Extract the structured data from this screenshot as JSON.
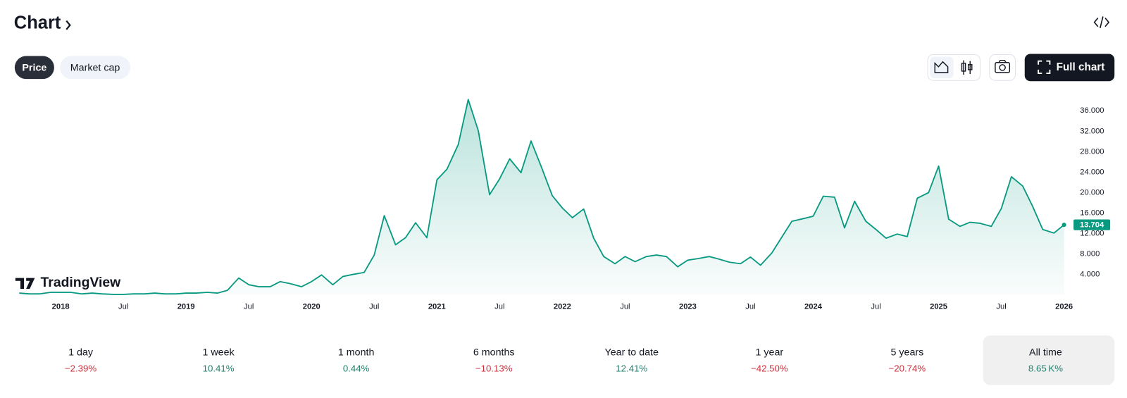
{
  "header": {
    "title": "Chart",
    "tabs": [
      "Price",
      "Market cap"
    ],
    "active_tab": 0,
    "full_chart": "Full chart"
  },
  "chart_data": {
    "type": "line",
    "watermark": "TradingView",
    "x": [
      2017.67,
      2017.75,
      2017.83,
      2017.92,
      2018.0,
      2018.08,
      2018.17,
      2018.25,
      2018.33,
      2018.42,
      2018.5,
      2018.58,
      2018.67,
      2018.75,
      2018.83,
      2018.92,
      2019.0,
      2019.08,
      2019.17,
      2019.25,
      2019.33,
      2019.42,
      2019.5,
      2019.58,
      2019.67,
      2019.75,
      2019.83,
      2019.92,
      2020.0,
      2020.08,
      2020.17,
      2020.25,
      2020.33,
      2020.42,
      2020.5,
      2020.58,
      2020.67,
      2020.75,
      2020.83,
      2020.92,
      2021.0,
      2021.08,
      2021.17,
      2021.25,
      2021.33,
      2021.42,
      2021.5,
      2021.58,
      2021.67,
      2021.75,
      2021.83,
      2021.92,
      2022.0,
      2022.08,
      2022.17,
      2022.25,
      2022.33,
      2022.42,
      2022.5,
      2022.58,
      2022.67,
      2022.75,
      2022.83,
      2022.92,
      2023.0,
      2023.08,
      2023.17,
      2023.25,
      2023.33,
      2023.42,
      2023.5,
      2023.58,
      2023.67,
      2023.75,
      2023.83,
      2023.92,
      2024.0,
      2024.08,
      2024.17,
      2024.25,
      2024.33,
      2024.42,
      2024.5,
      2024.58,
      2024.67,
      2024.75,
      2024.83,
      2024.92,
      2025.0,
      2025.08,
      2025.17,
      2025.25,
      2025.33,
      2025.42,
      2025.5,
      2025.58,
      2025.67,
      2025.75,
      2025.83,
      2025.92,
      2026.0
    ],
    "series": [
      {
        "color": "#089981",
        "values": [
          0.35,
          0.2,
          0.2,
          0.5,
          0.5,
          0.5,
          0.2,
          0.35,
          0.2,
          0.1,
          0.1,
          0.2,
          0.2,
          0.35,
          0.2,
          0.2,
          0.35,
          0.35,
          0.5,
          0.35,
          0.9,
          3.3,
          2.0,
          1.6,
          1.6,
          2.6,
          2.2,
          1.6,
          2.6,
          3.9,
          2.0,
          3.6,
          4.0,
          4.4,
          7.8,
          15.5,
          9.8,
          11.2,
          14.1,
          11.2,
          22.5,
          24.6,
          29.4,
          38.2,
          32.1,
          19.6,
          22.7,
          26.6,
          23.9,
          30.1,
          25.2,
          19.4,
          17.0,
          15.1,
          16.8,
          11.1,
          7.5,
          6.1,
          7.5,
          6.5,
          7.5,
          7.8,
          7.5,
          5.5,
          6.8,
          7.1,
          7.5,
          7.0,
          6.4,
          6.1,
          7.4,
          5.8,
          8.2,
          11.3,
          14.4,
          14.9,
          15.4,
          19.3,
          19.1,
          13.1,
          18.3,
          14.4,
          12.8,
          11.1,
          11.9,
          11.4,
          18.9,
          20.0,
          25.2,
          14.8,
          13.4,
          14.2,
          14.0,
          13.4,
          16.9,
          23.1,
          21.3,
          17.3,
          12.8,
          12.1,
          13.704
        ]
      }
    ],
    "xlim": [
      2017.65,
      2026.08
    ],
    "xticks": [
      2018,
      {
        "value": 2018.5,
        "label": "Jul"
      },
      2019,
      {
        "value": 2019.5,
        "label": "Jul"
      },
      2020,
      {
        "value": 2020.5,
        "label": "Jul"
      },
      2021,
      {
        "value": 2021.5,
        "label": "Jul"
      },
      2022,
      {
        "value": 2022.5,
        "label": "Jul"
      },
      2023,
      {
        "value": 2023.5,
        "label": "Jul"
      },
      2024,
      {
        "value": 2024.5,
        "label": "Jul"
      },
      2025,
      {
        "value": 2025.5,
        "label": "Jul"
      },
      2026
    ],
    "ylim": [
      0,
      39.4
    ],
    "yticks": [
      {
        "value": 4,
        "label": "4.000"
      },
      {
        "value": 8,
        "label": "8.000"
      },
      {
        "value": 12,
        "label": "12.000"
      },
      {
        "value": 16,
        "label": "16.000"
      },
      {
        "value": 20,
        "label": "20.000"
      },
      {
        "value": 24,
        "label": "24.000"
      },
      {
        "value": 28,
        "label": "28.000"
      },
      {
        "value": 32,
        "label": "32.000"
      },
      {
        "value": 36,
        "label": "36.000"
      }
    ]
  },
  "periods": [
    {
      "label": "1 day",
      "change": "−2.39%",
      "direction": "down"
    },
    {
      "label": "1 week",
      "change": "10.41%",
      "direction": "up"
    },
    {
      "label": "1 month",
      "change": "0.44%",
      "direction": "up"
    },
    {
      "label": "6 months",
      "change": "−10.13%",
      "direction": "down"
    },
    {
      "label": "Year to date",
      "change": "12.41%",
      "direction": "up"
    },
    {
      "label": "1 year",
      "change": "−42.50%",
      "direction": "down"
    },
    {
      "label": "5 years",
      "change": "−20.74%",
      "direction": "down"
    },
    {
      "label": "All time",
      "change": "8.65 K%",
      "direction": "up"
    }
  ],
  "active_period": 7
}
